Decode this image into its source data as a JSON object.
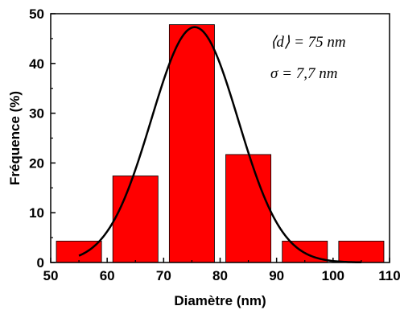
{
  "chart_data": {
    "type": "bar",
    "xlabel": "Diamètre (nm)",
    "ylabel": "Fréquence (%)",
    "xlim": [
      50,
      110
    ],
    "ylim": [
      0,
      50
    ],
    "x_ticks": [
      "50",
      "60",
      "70",
      "80",
      "90",
      "100",
      "110"
    ],
    "y_ticks": [
      "0",
      "10",
      "20",
      "30",
      "40",
      "50"
    ],
    "bins": [
      {
        "from": 51,
        "to": 59,
        "value": 4.3
      },
      {
        "from": 61,
        "to": 69,
        "value": 17.4
      },
      {
        "from": 71,
        "to": 79,
        "value": 47.8
      },
      {
        "from": 81,
        "to": 89,
        "value": 21.7
      },
      {
        "from": 91,
        "to": 99,
        "value": 4.3
      },
      {
        "from": 101,
        "to": 109,
        "value": 4.3
      }
    ],
    "fit": {
      "type": "gaussian",
      "mean": 75.5,
      "sigma": 7.7,
      "peak": 47.3,
      "x_from": 55,
      "x_to": 105
    },
    "annotations": [
      "⟨d⟩ = 75 nm",
      "σ = 7,7 nm"
    ],
    "bar_color": "#ff0000",
    "grid": false
  }
}
